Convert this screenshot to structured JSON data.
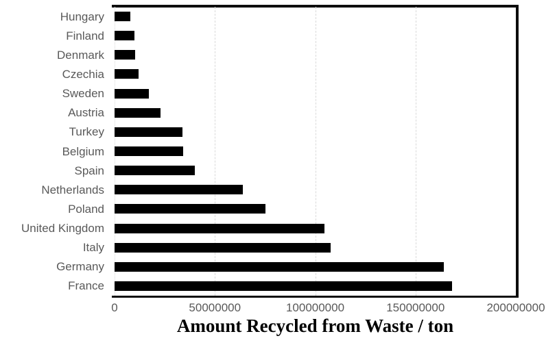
{
  "chart_data": {
    "type": "bar",
    "orientation": "horizontal",
    "title": "",
    "xlabel": "Amount Recycled from Waste / ton",
    "ylabel": "",
    "categories": [
      "Hungary",
      "Finland",
      "Denmark",
      "Czechia",
      "Sweden",
      "Austria",
      "Turkey",
      "Belgium",
      "Spain",
      "Netherlands",
      "Poland",
      "United Kingdom",
      "Italy",
      "Germany",
      "France"
    ],
    "values": [
      8000000,
      9900000,
      10300000,
      11800000,
      17000000,
      22800000,
      33700000,
      34100000,
      40000000,
      64000000,
      75200000,
      104700000,
      107800000,
      164000000,
      168300000
    ],
    "xlim": [
      0,
      200000000
    ],
    "x_ticks": [
      "0",
      "50000000",
      "100000000",
      "150000000",
      "200000000"
    ],
    "grid": "vertical-dashed",
    "legend": "none",
    "bar_color": "#000000",
    "axis_line_color": "#0d0d0d",
    "gridline_color": "#d9d9d9",
    "label_color": "#595959"
  }
}
